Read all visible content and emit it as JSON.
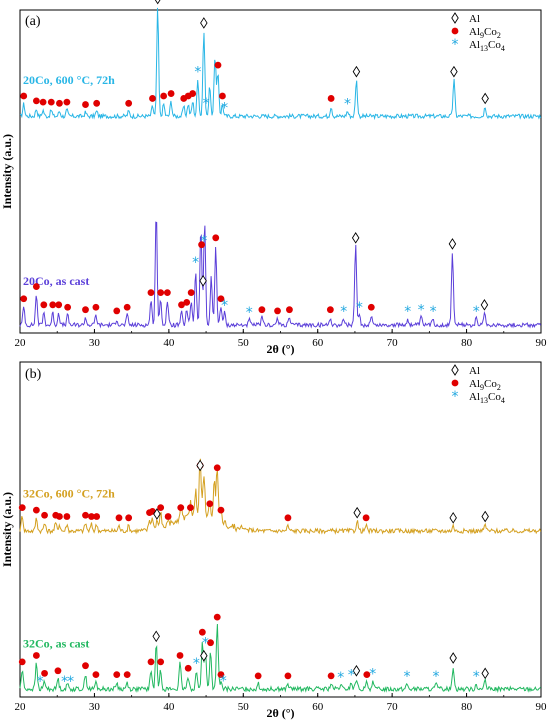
{
  "colors": {
    "al_marker": "#000000",
    "al9co2_marker": "#e00000",
    "al13co4_marker": "#22a8e0"
  },
  "chart_data": [
    {
      "type": "line",
      "panel_label": "(a)",
      "xlabel": "2θ (°)",
      "ylabel": "Intensity (a.u.)",
      "xlim": [
        20,
        90
      ],
      "xticks": [
        20,
        30,
        40,
        50,
        60,
        70,
        80,
        90
      ],
      "legend": {
        "position": "top-right",
        "entries": [
          {
            "marker": "diamond",
            "label": "Al",
            "sub": ""
          },
          {
            "marker": "dot",
            "label": "Al",
            "sub": "9",
            "label2": "Co",
            "sub2": "2"
          },
          {
            "marker": "star",
            "label": "Al",
            "sub": "13",
            "label2": "Co",
            "sub2": "4"
          }
        ]
      },
      "series": [
        {
          "name": "20Co, 600 °C, 72h",
          "color": "#29b6e6",
          "baseline": 0.72,
          "peaks": [
            [
              20.5,
              0.1
            ],
            [
              22.2,
              0.06
            ],
            [
              23.1,
              0.05
            ],
            [
              24.2,
              0.05
            ],
            [
              25.3,
              0.04
            ],
            [
              26.3,
              0.05
            ],
            [
              28.8,
              0.03
            ],
            [
              30.3,
              0.04
            ],
            [
              34.6,
              0.04
            ],
            [
              37.8,
              0.08
            ],
            [
              38.5,
              0.9
            ],
            [
              39.3,
              0.1
            ],
            [
              40.3,
              0.12
            ],
            [
              42.0,
              0.08
            ],
            [
              42.6,
              0.1
            ],
            [
              43.2,
              0.12
            ],
            [
              43.9,
              0.3
            ],
            [
              44.7,
              0.7
            ],
            [
              45.5,
              0.25
            ],
            [
              46.2,
              0.5
            ],
            [
              46.6,
              0.35
            ],
            [
              47.2,
              0.1
            ],
            [
              61.8,
              0.08
            ],
            [
              64.0,
              0.04
            ],
            [
              65.2,
              0.3
            ],
            [
              78.3,
              0.3
            ],
            [
              82.5,
              0.08
            ]
          ],
          "markers": [
            {
              "type": "dot",
              "x": [
                20.5,
                22.2,
                23.1,
                24.2,
                25.3,
                26.3,
                28.8,
                30.3,
                34.6,
                37.8,
                39.3,
                40.3,
                42.0,
                42.6,
                43.2,
                46.6,
                47.2,
                61.8
              ]
            },
            {
              "type": "diamond",
              "x": [
                38.5,
                44.7,
                65.2,
                78.3,
                82.5
              ]
            },
            {
              "type": "star",
              "x": [
                43.9,
                45.0,
                47.5,
                64.0
              ]
            }
          ]
        },
        {
          "name": "20Co, as cast",
          "color": "#5b3fd9",
          "baseline": 0.0,
          "peaks": [
            [
              20.5,
              0.15
            ],
            [
              22.2,
              0.25
            ],
            [
              23.2,
              0.1
            ],
            [
              24.4,
              0.1
            ],
            [
              25.2,
              0.1
            ],
            [
              26.4,
              0.08
            ],
            [
              28.8,
              0.06
            ],
            [
              30.2,
              0.08
            ],
            [
              33.0,
              0.05
            ],
            [
              34.4,
              0.08
            ],
            [
              37.6,
              0.2
            ],
            [
              38.3,
              0.95
            ],
            [
              38.9,
              0.2
            ],
            [
              39.8,
              0.2
            ],
            [
              41.7,
              0.1
            ],
            [
              42.4,
              0.12
            ],
            [
              43.0,
              0.2
            ],
            [
              43.6,
              0.45
            ],
            [
              44.3,
              0.8
            ],
            [
              44.8,
              0.85
            ],
            [
              45.7,
              0.4
            ],
            [
              46.3,
              0.65
            ],
            [
              47.0,
              0.15
            ],
            [
              47.5,
              0.1
            ],
            [
              50.8,
              0.04
            ],
            [
              52.5,
              0.06
            ],
            [
              54.6,
              0.05
            ],
            [
              56.2,
              0.06
            ],
            [
              61.7,
              0.06
            ],
            [
              63.5,
              0.05
            ],
            [
              65.1,
              0.65
            ],
            [
              65.6,
              0.08
            ],
            [
              67.2,
              0.08
            ],
            [
              72.1,
              0.05
            ],
            [
              73.9,
              0.06
            ],
            [
              75.5,
              0.05
            ],
            [
              78.1,
              0.6
            ],
            [
              81.3,
              0.05
            ],
            [
              82.4,
              0.1
            ]
          ],
          "markers": [
            {
              "type": "dot",
              "x": [
                20.5,
                22.2,
                23.2,
                24.4,
                25.2,
                26.4,
                28.8,
                30.2,
                33.0,
                34.4,
                37.6,
                38.9,
                39.8,
                41.7,
                42.4,
                43.0,
                44.4,
                46.3,
                47.0,
                52.5,
                54.6,
                56.2,
                61.7,
                67.2
              ]
            },
            {
              "type": "diamond",
              "x": [
                44.6,
                65.1,
                78.1,
                82.4
              ]
            },
            {
              "type": "star",
              "x": [
                43.6,
                44.7,
                47.5,
                50.8,
                63.5,
                65.6,
                72.1,
                73.9,
                75.5,
                81.3
              ]
            }
          ]
        }
      ]
    },
    {
      "type": "line",
      "panel_label": "(b)",
      "xlabel": "2θ (°)",
      "ylabel": "Intensity (a.u.)",
      "xlim": [
        20,
        90
      ],
      "xticks": [
        20,
        30,
        40,
        50,
        60,
        70,
        80,
        90
      ],
      "legend": {
        "position": "top-right",
        "entries": [
          {
            "marker": "diamond",
            "label": "Al",
            "sub": ""
          },
          {
            "marker": "dot",
            "label": "Al",
            "sub": "9",
            "label2": "Co",
            "sub2": "2"
          },
          {
            "marker": "star",
            "label": "Al",
            "sub": "13",
            "label2": "Co",
            "sub2": "4"
          }
        ]
      },
      "series": [
        {
          "name": "32Co, 600 °C, 72h",
          "color": "#d4a020",
          "baseline": 0.52,
          "peaks": [
            [
              20.3,
              0.12
            ],
            [
              22.2,
              0.1
            ],
            [
              23.3,
              0.06
            ],
            [
              24.8,
              0.06
            ],
            [
              25.3,
              0.05
            ],
            [
              26.3,
              0.05
            ],
            [
              28.8,
              0.06
            ],
            [
              29.6,
              0.05
            ],
            [
              30.3,
              0.05
            ],
            [
              33.3,
              0.04
            ],
            [
              34.6,
              0.04
            ],
            [
              37.4,
              0.08
            ],
            [
              37.8,
              0.09
            ],
            [
              38.4,
              0.07
            ],
            [
              38.9,
              0.12
            ],
            [
              39.9,
              0.05
            ],
            [
              41.6,
              0.12
            ],
            [
              42.9,
              0.12
            ],
            [
              43.6,
              0.2
            ],
            [
              44.2,
              0.45
            ],
            [
              44.7,
              0.35
            ],
            [
              45.5,
              0.15
            ],
            [
              46.1,
              0.3
            ],
            [
              46.5,
              0.43
            ],
            [
              47.0,
              0.1
            ],
            [
              56.0,
              0.04
            ],
            [
              65.3,
              0.08
            ],
            [
              66.5,
              0.04
            ],
            [
              78.2,
              0.04
            ],
            [
              82.5,
              0.05
            ]
          ],
          "markers": [
            {
              "type": "dot",
              "x": [
                20.3,
                22.2,
                23.3,
                24.8,
                25.3,
                26.3,
                28.8,
                29.6,
                30.3,
                33.3,
                34.6,
                37.4,
                37.8,
                38.9,
                39.9,
                41.6,
                42.9,
                44.2,
                45.5,
                46.5,
                47.0,
                56.0,
                66.5
              ]
            },
            {
              "type": "diamond",
              "x": [
                38.4,
                44.2,
                65.3,
                78.2,
                82.5
              ]
            },
            {
              "type": "star",
              "x": []
            }
          ]
        },
        {
          "name": "32Co, as cast",
          "color": "#22b860",
          "baseline": 0.0,
          "peaks": [
            [
              20.3,
              0.15
            ],
            [
              22.2,
              0.2
            ],
            [
              23.3,
              0.06
            ],
            [
              25.1,
              0.08
            ],
            [
              26.4,
              0.04
            ],
            [
              28.8,
              0.12
            ],
            [
              30.2,
              0.05
            ],
            [
              33.0,
              0.05
            ],
            [
              34.4,
              0.05
            ],
            [
              37.6,
              0.15
            ],
            [
              38.3,
              0.35
            ],
            [
              38.9,
              0.15
            ],
            [
              41.5,
              0.2
            ],
            [
              42.6,
              0.1
            ],
            [
              43.7,
              0.14
            ],
            [
              44.5,
              0.38
            ],
            [
              44.9,
              0.3
            ],
            [
              45.6,
              0.3
            ],
            [
              46.5,
              0.5
            ],
            [
              47.0,
              0.05
            ],
            [
              52.0,
              0.04
            ],
            [
              56.0,
              0.04
            ],
            [
              61.8,
              0.04
            ],
            [
              63.1,
              0.03
            ],
            [
              64.5,
              0.05
            ],
            [
              65.2,
              0.08
            ],
            [
              66.6,
              0.05
            ],
            [
              67.4,
              0.06
            ],
            [
              72.0,
              0.04
            ],
            [
              75.9,
              0.04
            ],
            [
              78.2,
              0.18
            ],
            [
              81.3,
              0.04
            ],
            [
              82.5,
              0.06
            ]
          ],
          "markers": [
            {
              "type": "dot",
              "x": [
                20.3,
                22.2,
                23.3,
                25.1,
                28.8,
                30.2,
                33.0,
                34.4,
                37.6,
                38.9,
                41.5,
                42.6,
                44.5,
                45.6,
                46.5,
                47.0,
                52.0,
                56.0,
                61.8,
                66.6
              ]
            },
            {
              "type": "diamond",
              "x": [
                38.3,
                44.7,
                65.2,
                78.2,
                82.5
              ]
            },
            {
              "type": "star",
              "x": [
                22.7,
                26.0,
                26.8,
                43.7,
                44.9,
                47.3,
                63.1,
                64.5,
                67.4,
                72.0,
                75.9,
                81.3
              ]
            }
          ]
        }
      ]
    }
  ]
}
